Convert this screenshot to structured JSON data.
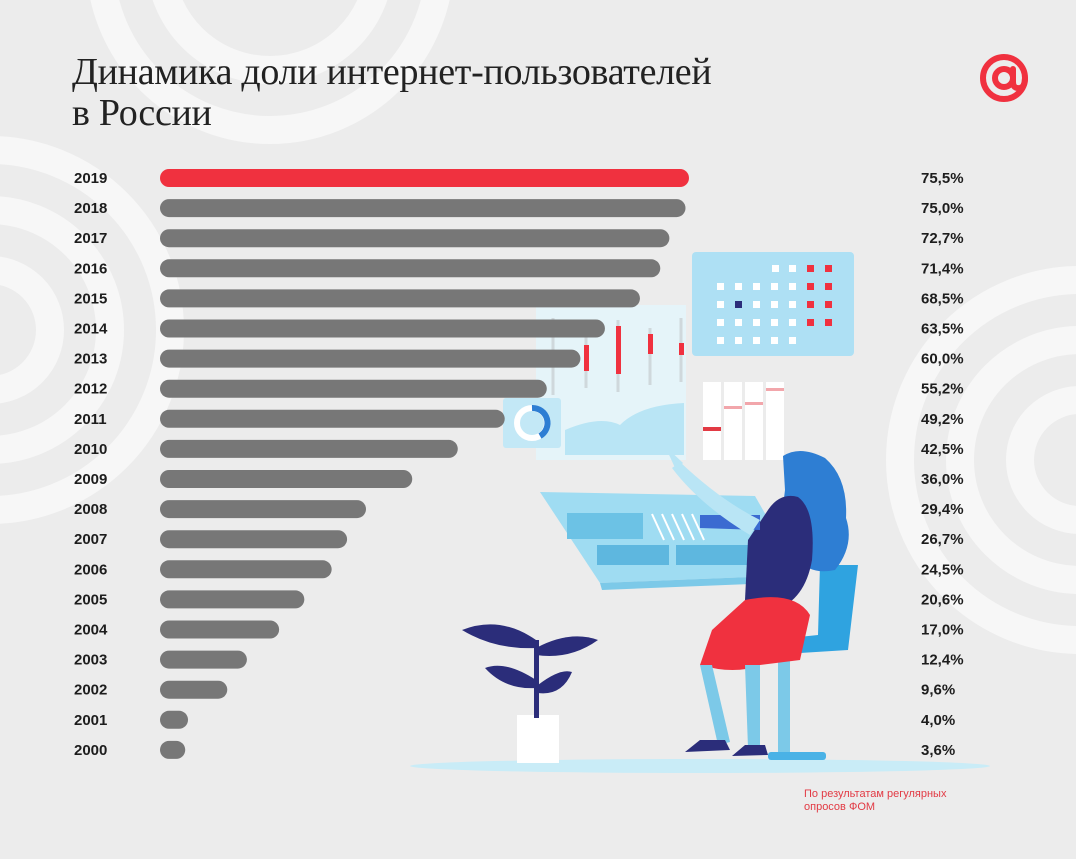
{
  "title_line1": "Динамика доли интернет-пользователей",
  "title_line2": "в России",
  "source_line1": "По результатам регулярных",
  "source_line2": "опросов ФОМ",
  "colors": {
    "highlight": "#f0313f",
    "bar": "#777777",
    "text": "#1d1d1d",
    "background": "#ececec"
  },
  "chart_data": {
    "type": "bar",
    "orientation": "horizontal",
    "title": "Динамика доли интернет-пользователей в России",
    "categories": [
      "2019",
      "2018",
      "2017",
      "2016",
      "2015",
      "2014",
      "2013",
      "2012",
      "2011",
      "2010",
      "2009",
      "2008",
      "2007",
      "2006",
      "2005",
      "2004",
      "2003",
      "2002",
      "2001",
      "2000"
    ],
    "values": [
      75.5,
      75.0,
      72.7,
      71.4,
      68.5,
      63.5,
      60.0,
      55.2,
      49.2,
      42.5,
      36.0,
      29.4,
      26.7,
      24.5,
      20.6,
      17.0,
      12.4,
      9.6,
      4.0,
      3.6
    ],
    "value_labels": [
      "75,5%",
      "75,0%",
      "72,7%",
      "71,4%",
      "68,5%",
      "63,5%",
      "60,0%",
      "55,2%",
      "49,2%",
      "42,5%",
      "36,0%",
      "29,4%",
      "26,7%",
      "24,5%",
      "20,6%",
      "17,0%",
      "12,4%",
      "9,6%",
      "4,0%",
      "3,6%"
    ],
    "highlight_index": 0,
    "unit": "%",
    "xlim": [
      0,
      75.5
    ]
  }
}
